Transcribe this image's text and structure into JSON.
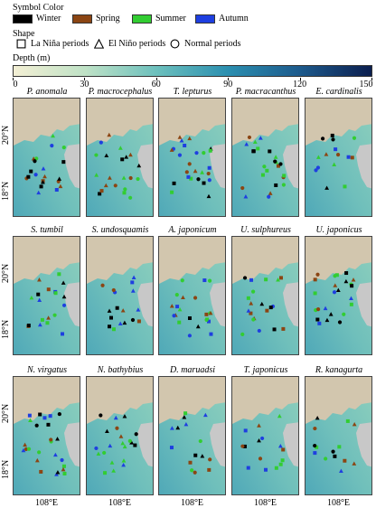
{
  "legend": {
    "symbol_color_title": "Symbol Color",
    "seasons": [
      {
        "label": "Winter",
        "color": "#000000"
      },
      {
        "label": "Spring",
        "color": "#8B4513"
      },
      {
        "label": "Summer",
        "color": "#32CD32"
      },
      {
        "label": "Autumn",
        "color": "#1E3FE0"
      }
    ],
    "shape_title": "Shape",
    "shapes": [
      {
        "label": "La Niña periods",
        "icon": "square-icon"
      },
      {
        "label": "El Niño periods",
        "icon": "triangle-icon"
      },
      {
        "label": "Normal periods",
        "icon": "circle-icon"
      }
    ]
  },
  "depth_bar": {
    "title": "Depth (m)",
    "ticks": [
      "0",
      "30",
      "60",
      "90",
      "120",
      "150"
    ],
    "colors": [
      "#f3efd4",
      "#bfe2c6",
      "#6cc0bd",
      "#2b8fb0",
      "#1d5a8c",
      "#0c1f4f"
    ]
  },
  "axis": {
    "lat_labels": [
      "20°N",
      "18°N"
    ],
    "lon_label": "108°E"
  },
  "map_colors": {
    "land": "#d2c6ae",
    "land_gray": "#c8c8c8",
    "sea_shallow": "#8fd0bd",
    "sea_deep": "#4fa8b8"
  },
  "panels": [
    {
      "title": "P. anomala"
    },
    {
      "title": "P. macrocephalus"
    },
    {
      "title": "T. lepturus"
    },
    {
      "title": "P. macracanthus"
    },
    {
      "title": "E. cardinalis"
    },
    {
      "title": "S. tumbil"
    },
    {
      "title": "S. undosquamis"
    },
    {
      "title": "A. japonicum"
    },
    {
      "title": "U. sulphureus"
    },
    {
      "title": "U. japonicus"
    },
    {
      "title": "N. virgatus"
    },
    {
      "title": "N. bathybius"
    },
    {
      "title": "D. maruadsi"
    },
    {
      "title": "T. japonicus"
    },
    {
      "title": "R. kanagurta"
    }
  ]
}
